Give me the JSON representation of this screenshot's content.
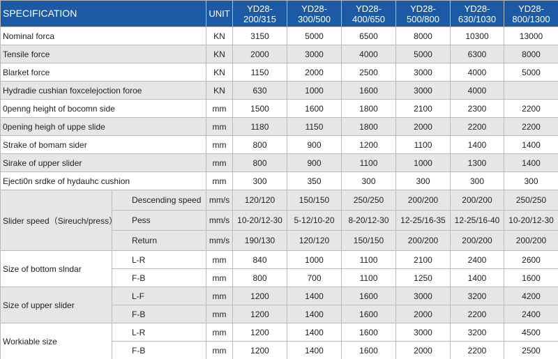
{
  "table": {
    "header": {
      "spec": "SPECIFICATION",
      "unit": "UNIT",
      "models": [
        "YD28-200/315",
        "YD28-300/500",
        "YD28-400/650",
        "YD28-500/800",
        "YD28-630/1030",
        "YD28-800/1300"
      ]
    },
    "rows": [
      {
        "label": "Nominal forca",
        "unit": "KN",
        "values": [
          "3150",
          "5000",
          "6500",
          "8000",
          "10300",
          "13000"
        ]
      },
      {
        "label": "Tensile force",
        "unit": "KN",
        "values": [
          "2000",
          "3000",
          "4000",
          "5000",
          "6300",
          "8000"
        ]
      },
      {
        "label": "Blarket force",
        "unit": "KN",
        "values": [
          "1150",
          "2000",
          "2500",
          "3000",
          "4000",
          "5000"
        ]
      },
      {
        "label": "Hydradie cushian foxcelejoction foroe",
        "unit": "KN",
        "values": [
          "630",
          "1000",
          "1600",
          "3000",
          "4000",
          null
        ]
      },
      {
        "label": "0penng height of bocomn side",
        "unit": "mm",
        "values": [
          "1500",
          "1600",
          "1800",
          "2100",
          "2300",
          "2200"
        ]
      },
      {
        "label": "0pening heigh of uppe slide",
        "unit": "mm",
        "values": [
          "1180",
          "1150",
          "1800",
          "2000",
          "2200",
          "2200"
        ]
      },
      {
        "label": "Strake of bomam sider",
        "unit": "mm",
        "values": [
          "800",
          "900",
          "1200",
          "1100",
          "1400",
          "1400"
        ]
      },
      {
        "label": "Sirake of upper slider",
        "unit": "mm",
        "values": [
          "800",
          "900",
          "1100",
          "1000",
          "1300",
          "1400"
        ]
      },
      {
        "label": "Ejecti0n srdke of hydauhc cushion",
        "unit": "mm",
        "values": [
          "300",
          "350",
          "300",
          "300",
          "300",
          "300"
        ]
      }
    ],
    "groups": [
      {
        "label": "Slider speed（Sireuch/press）",
        "rows": [
          {
            "label": "Descending speed",
            "unit": "mm/s",
            "values": [
              "120/120",
              "150/150",
              "250/250",
              "200/200",
              "200/200",
              "250/250"
            ]
          },
          {
            "label": "Pess",
            "unit": "mm/s",
            "values": [
              "10-20/12-30",
              "5-12/10-20",
              "8-20/12-30",
              "12-25/16-35",
              "12-25/16-40",
              "10-20/12-30"
            ]
          },
          {
            "label": "Return",
            "unit": "mm/s",
            "values": [
              "190/130",
              "120/120",
              "150/150",
              "200/200",
              "200/200",
              "200/200"
            ]
          }
        ]
      },
      {
        "label": "Size of bottom slndar",
        "rows": [
          {
            "label": "L-R",
            "unit": "mm",
            "values": [
              "840",
              "1000",
              "1100",
              "2100",
              "2400",
              "2600"
            ]
          },
          {
            "label": "F-B",
            "unit": "mm",
            "values": [
              "800",
              "700",
              "1100",
              "1250",
              "1400",
              "1600"
            ]
          }
        ]
      },
      {
        "label": "Size of upper slider",
        "rows": [
          {
            "label": "L-F",
            "unit": "mm",
            "values": [
              "1200",
              "1400",
              "1600",
              "3000",
              "3200",
              "4200"
            ]
          },
          {
            "label": "F-B",
            "unit": "mm",
            "values": [
              "1200",
              "1400",
              "1600",
              "2000",
              "2200",
              "2400"
            ]
          }
        ]
      },
      {
        "label": "Workiable size",
        "rows": [
          {
            "label": "L-R",
            "unit": "mm",
            "values": [
              "1200",
              "1400",
              "1600",
              "3000",
              "3200",
              "4500"
            ]
          },
          {
            "label": "F-B",
            "unit": "mm",
            "values": [
              "1200",
              "1400",
              "1600",
              "2000",
              "2200",
              "2500"
            ]
          }
        ]
      }
    ]
  }
}
